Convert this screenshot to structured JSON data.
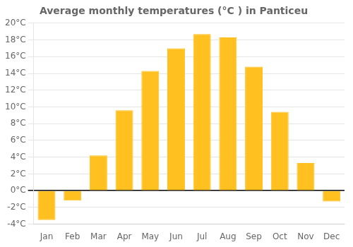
{
  "chart_data": {
    "type": "bar",
    "title": "Average monthly temperatures (°C ) in Panticeu",
    "categories": [
      "Jan",
      "Feb",
      "Mar",
      "Apr",
      "May",
      "Jun",
      "Jul",
      "Aug",
      "Sep",
      "Oct",
      "Nov",
      "Dec"
    ],
    "values": [
      -3.5,
      -1.2,
      4.2,
      9.6,
      14.3,
      17.0,
      18.7,
      18.3,
      14.8,
      9.4,
      3.3,
      -1.3
    ],
    "color": "#FFC020",
    "ylim": [
      -4,
      20
    ],
    "yticks": [
      {
        "value": -4,
        "label": "-4°C"
      },
      {
        "value": -2,
        "label": "-2°C"
      },
      {
        "value": 0,
        "label": "0°C"
      },
      {
        "value": 2,
        "label": "2°C"
      },
      {
        "value": 4,
        "label": "4°C"
      },
      {
        "value": 6,
        "label": "6°C"
      },
      {
        "value": 8,
        "label": "8°C"
      },
      {
        "value": 10,
        "label": "10°C"
      },
      {
        "value": 12,
        "label": "12°C"
      },
      {
        "value": 14,
        "label": "14°C"
      },
      {
        "value": 16,
        "label": "16°C"
      },
      {
        "value": 18,
        "label": "18°C"
      },
      {
        "value": 20,
        "label": "20°C"
      }
    ],
    "grid": true
  }
}
